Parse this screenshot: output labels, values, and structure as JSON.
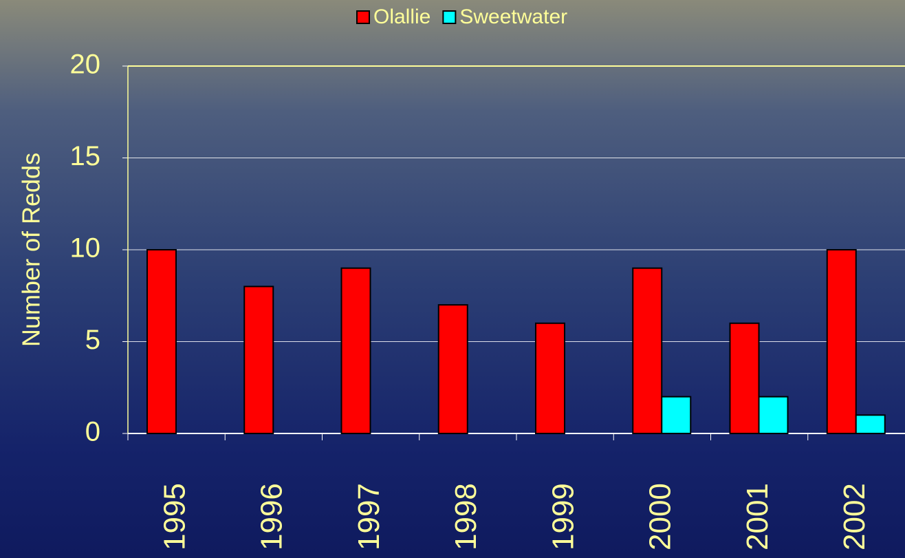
{
  "chart_data": {
    "type": "bar",
    "y_label": "Number of Redds",
    "categories": [
      "1995",
      "1996",
      "1997",
      "1998",
      "1999",
      "2000",
      "2001",
      "2002"
    ],
    "series": [
      {
        "name": "Olallie",
        "color": "#ff0000",
        "values": [
          10,
          8,
          9,
          7,
          6,
          9,
          6,
          10
        ]
      },
      {
        "name": "Sweetwater",
        "color": "#00ffff",
        "values": [
          0,
          0,
          0,
          0,
          0,
          2,
          2,
          1
        ]
      }
    ],
    "ylim": [
      0,
      20
    ],
    "yticks": [
      0,
      5,
      10,
      15,
      20
    ],
    "grid": true,
    "legend": "top"
  }
}
